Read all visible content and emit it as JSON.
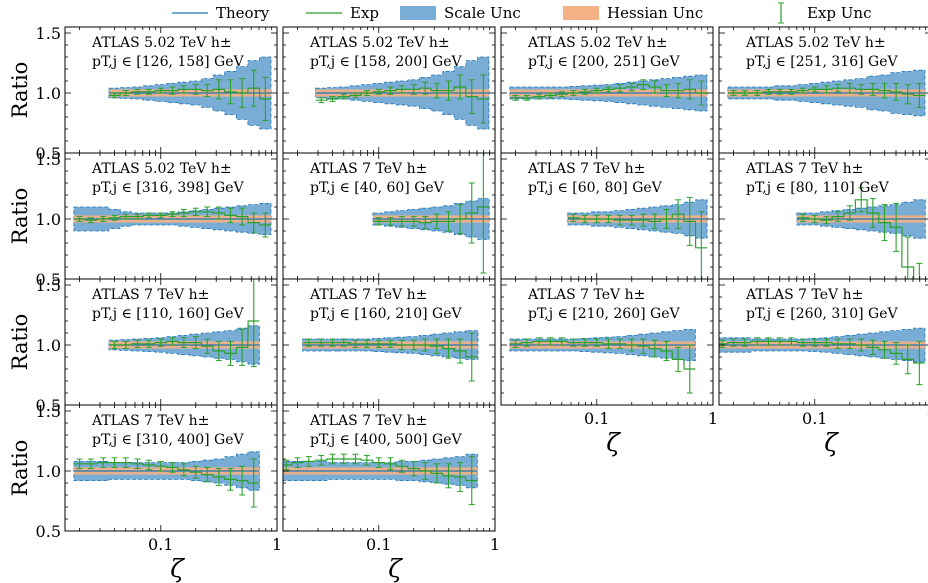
{
  "legend": {
    "items": [
      {
        "label": "Theory",
        "kind": "line",
        "color": "#1f77b4"
      },
      {
        "label": "Exp",
        "kind": "line",
        "color": "#2ca02c"
      },
      {
        "label": "Scale Unc",
        "kind": "patch",
        "color": "#7aadd6"
      },
      {
        "label": "Hessian Unc",
        "kind": "patch",
        "color": "#f4b183"
      },
      {
        "label": "Exp Unc",
        "kind": "errorbar",
        "color": "#2ca02c"
      }
    ]
  },
  "colors": {
    "theory": "#1f77b4",
    "exp": "#2ca02c",
    "scale_fill": "#7aadd6",
    "scale_edge": "#1f77b4",
    "hessian": "#f4b183"
  },
  "axes": {
    "ylabel": "Ratio",
    "xlabel": "ζ",
    "xscale": "log",
    "xlim": [
      0.015,
      1.0
    ],
    "ylim": [
      0.5,
      1.55
    ],
    "yticks": [
      {
        "v": 0.5,
        "label": "0.5"
      },
      {
        "v": 1.0,
        "label": "1.0"
      },
      {
        "v": 1.5,
        "label": "1.5"
      }
    ],
    "xticks": [
      {
        "v": 0.1,
        "label": "0.1"
      },
      {
        "v": 1.0,
        "label": "1"
      }
    ]
  },
  "chart_data": [
    {
      "type": "line",
      "title": "ATLAS 5.02 TeV h±",
      "subtitle": "pT,j ∈ [126, 158] GeV",
      "x": [
        0.04,
        0.05,
        0.063,
        0.079,
        0.1,
        0.126,
        0.158,
        0.2,
        0.251,
        0.316,
        0.398,
        0.501,
        0.631,
        0.794
      ],
      "theory": 1.0,
      "hessian_halfwidth": 0.03,
      "scale_unc": [
        0.04,
        0.045,
        0.05,
        0.06,
        0.07,
        0.08,
        0.09,
        0.1,
        0.12,
        0.15,
        0.18,
        0.22,
        0.27,
        0.3
      ],
      "exp": [
        0.98,
        1.0,
        1.01,
        1.01,
        1.02,
        1.02,
        1.03,
        1.03,
        1.02,
        1.03,
        1.01,
        1.0,
        1.04,
        0.95
      ],
      "exp_err": [
        0.02,
        0.02,
        0.02,
        0.02,
        0.02,
        0.03,
        0.03,
        0.04,
        0.05,
        0.08,
        0.1,
        0.12,
        0.15,
        0.18
      ]
    },
    {
      "type": "line",
      "title": "ATLAS 5.02 TeV h±",
      "subtitle": "pT,j ∈ [158, 200] GeV",
      "x": [
        0.032,
        0.04,
        0.05,
        0.063,
        0.079,
        0.1,
        0.126,
        0.158,
        0.2,
        0.251,
        0.316,
        0.398,
        0.501,
        0.631,
        0.794
      ],
      "theory": 1.0,
      "hessian_halfwidth": 0.03,
      "scale_unc": [
        0.04,
        0.045,
        0.05,
        0.06,
        0.07,
        0.08,
        0.09,
        0.1,
        0.11,
        0.13,
        0.15,
        0.18,
        0.22,
        0.27,
        0.3
      ],
      "exp": [
        0.94,
        0.95,
        0.97,
        0.98,
        1.0,
        1.01,
        1.02,
        1.03,
        1.03,
        1.04,
        1.02,
        1.02,
        1.05,
        0.97,
        0.95
      ],
      "exp_err": [
        0.02,
        0.02,
        0.02,
        0.02,
        0.02,
        0.02,
        0.03,
        0.03,
        0.04,
        0.05,
        0.06,
        0.08,
        0.1,
        0.14,
        0.2
      ]
    },
    {
      "type": "line",
      "title": "ATLAS 5.02 TeV h±",
      "subtitle": "pT,j ∈ [200, 251] GeV",
      "x": [
        0.02,
        0.025,
        0.032,
        0.04,
        0.05,
        0.063,
        0.079,
        0.1,
        0.126,
        0.158,
        0.2,
        0.251,
        0.316,
        0.398,
        0.501,
        0.631,
        0.794
      ],
      "theory": 1.0,
      "hessian_halfwidth": 0.03,
      "scale_unc": [
        0.05,
        0.05,
        0.05,
        0.05,
        0.05,
        0.055,
        0.06,
        0.065,
        0.07,
        0.08,
        0.09,
        0.1,
        0.11,
        0.12,
        0.13,
        0.14,
        0.15
      ],
      "exp": [
        0.96,
        0.96,
        0.97,
        0.98,
        0.99,
        1.0,
        1.01,
        1.02,
        1.03,
        1.04,
        1.05,
        1.07,
        1.05,
        1.02,
        1.02,
        1.03,
        1.0
      ],
      "exp_err": [
        0.02,
        0.02,
        0.02,
        0.02,
        0.02,
        0.02,
        0.02,
        0.02,
        0.02,
        0.03,
        0.03,
        0.04,
        0.05,
        0.05,
        0.06,
        0.08,
        0.1
      ]
    },
    {
      "type": "line",
      "title": "ATLAS 5.02 TeV h±",
      "subtitle": "pT,j ∈ [251, 316] GeV",
      "x": [
        0.02,
        0.025,
        0.032,
        0.04,
        0.05,
        0.063,
        0.079,
        0.1,
        0.126,
        0.158,
        0.2,
        0.251,
        0.316,
        0.398,
        0.501,
        0.631,
        0.794
      ],
      "theory": 1.0,
      "hessian_halfwidth": 0.03,
      "scale_unc": [
        0.05,
        0.05,
        0.05,
        0.05,
        0.06,
        0.06,
        0.07,
        0.08,
        0.09,
        0.1,
        0.11,
        0.12,
        0.14,
        0.15,
        0.17,
        0.18,
        0.19
      ],
      "exp": [
        1.0,
        1.0,
        1.0,
        1.01,
        1.01,
        1.01,
        1.02,
        1.03,
        1.03,
        1.04,
        1.04,
        1.03,
        1.03,
        1.02,
        1.01,
        0.99,
        0.98
      ],
      "exp_err": [
        0.02,
        0.02,
        0.02,
        0.02,
        0.02,
        0.02,
        0.02,
        0.02,
        0.03,
        0.03,
        0.04,
        0.04,
        0.05,
        0.06,
        0.07,
        0.08,
        0.1
      ]
    },
    {
      "type": "line",
      "title": "ATLAS 5.02 TeV h±",
      "subtitle": "pT,j ∈ [316, 398] GeV",
      "x": [
        0.02,
        0.025,
        0.032,
        0.04,
        0.05,
        0.063,
        0.079,
        0.1,
        0.126,
        0.158,
        0.2,
        0.251,
        0.316,
        0.398,
        0.501,
        0.631,
        0.794
      ],
      "theory": 1.0,
      "hessian_halfwidth": 0.03,
      "scale_unc": [
        0.1,
        0.1,
        0.1,
        0.08,
        0.06,
        0.05,
        0.05,
        0.05,
        0.05,
        0.06,
        0.07,
        0.08,
        0.09,
        0.1,
        0.11,
        0.12,
        0.13
      ],
      "exp": [
        1.0,
        0.99,
        1.0,
        1.01,
        1.02,
        1.02,
        1.03,
        1.03,
        1.04,
        1.05,
        1.06,
        1.06,
        1.05,
        1.03,
        1.02,
        0.97,
        0.95
      ],
      "exp_err": [
        0.02,
        0.02,
        0.02,
        0.02,
        0.02,
        0.02,
        0.02,
        0.02,
        0.02,
        0.03,
        0.03,
        0.04,
        0.05,
        0.06,
        0.07,
        0.08,
        0.1
      ]
    },
    {
      "type": "line",
      "title": "ATLAS 7 TeV h±",
      "subtitle": "pT,j ∈ [40, 60] GeV",
      "x": [
        0.1,
        0.126,
        0.158,
        0.2,
        0.251,
        0.316,
        0.398,
        0.501,
        0.631,
        0.794
      ],
      "theory": 1.0,
      "hessian_halfwidth": 0.03,
      "scale_unc": [
        0.05,
        0.06,
        0.07,
        0.08,
        0.09,
        0.1,
        0.11,
        0.13,
        0.15,
        0.17
      ],
      "exp": [
        0.98,
        0.98,
        0.98,
        0.98,
        0.97,
        0.98,
        0.98,
        1.0,
        1.05,
        1.1
      ],
      "exp_err": [
        0.03,
        0.03,
        0.04,
        0.04,
        0.05,
        0.06,
        0.08,
        0.12,
        0.25,
        0.55
      ]
    },
    {
      "type": "line",
      "title": "ATLAS 7 TeV h±",
      "subtitle": "pT,j ∈ [60, 80] GeV",
      "x": [
        0.063,
        0.079,
        0.1,
        0.126,
        0.158,
        0.2,
        0.251,
        0.316,
        0.398,
        0.501,
        0.631,
        0.794
      ],
      "theory": 1.0,
      "hessian_halfwidth": 0.03,
      "scale_unc": [
        0.05,
        0.05,
        0.06,
        0.06,
        0.07,
        0.08,
        0.09,
        0.1,
        0.11,
        0.12,
        0.14,
        0.16
      ],
      "exp": [
        1.01,
        1.0,
        1.0,
        1.0,
        0.99,
        0.99,
        0.99,
        0.98,
        1.0,
        1.04,
        0.98,
        0.76
      ],
      "exp_err": [
        0.03,
        0.03,
        0.03,
        0.03,
        0.04,
        0.04,
        0.05,
        0.06,
        0.08,
        0.12,
        0.2,
        0.3
      ]
    },
    {
      "type": "line",
      "title": "ATLAS 7 TeV h±",
      "subtitle": "pT,j ∈ [80, 110] GeV",
      "x": [
        0.079,
        0.1,
        0.126,
        0.158,
        0.2,
        0.251,
        0.316,
        0.398,
        0.501,
        0.631,
        0.794
      ],
      "theory": 1.0,
      "hessian_halfwidth": 0.03,
      "scale_unc": [
        0.05,
        0.05,
        0.06,
        0.07,
        0.08,
        0.09,
        0.1,
        0.11,
        0.12,
        0.14,
        0.16
      ],
      "exp": [
        1.01,
        1.0,
        0.99,
        1.02,
        1.05,
        1.16,
        1.05,
        0.97,
        0.93,
        0.6,
        0.38
      ],
      "exp_err": [
        0.03,
        0.03,
        0.03,
        0.04,
        0.06,
        0.1,
        0.12,
        0.15,
        0.2,
        0.25,
        0.25
      ]
    },
    {
      "type": "line",
      "title": "ATLAS 7 TeV h±",
      "subtitle": "pT,j ∈ [110, 160] GeV",
      "x": [
        0.04,
        0.05,
        0.063,
        0.079,
        0.1,
        0.126,
        0.158,
        0.2,
        0.251,
        0.316,
        0.398,
        0.501,
        0.631
      ],
      "theory": 1.0,
      "hessian_halfwidth": 0.03,
      "scale_unc": [
        0.04,
        0.045,
        0.05,
        0.055,
        0.06,
        0.07,
        0.08,
        0.09,
        0.1,
        0.11,
        0.12,
        0.14,
        0.16
      ],
      "exp": [
        1.0,
        1.0,
        1.01,
        1.01,
        1.02,
        1.03,
        1.02,
        1.02,
        0.99,
        0.95,
        0.93,
        0.98,
        1.2
      ],
      "exp_err": [
        0.03,
        0.03,
        0.03,
        0.03,
        0.03,
        0.03,
        0.04,
        0.05,
        0.06,
        0.08,
        0.1,
        0.15,
        0.38
      ]
    },
    {
      "type": "line",
      "title": "ATLAS 7 TeV h±",
      "subtitle": "pT,j ∈ [160, 210] GeV",
      "x": [
        0.025,
        0.032,
        0.04,
        0.05,
        0.063,
        0.079,
        0.1,
        0.126,
        0.158,
        0.2,
        0.251,
        0.316,
        0.398,
        0.501,
        0.631
      ],
      "theory": 1.0,
      "hessian_halfwidth": 0.03,
      "scale_unc": [
        0.05,
        0.05,
        0.05,
        0.05,
        0.05,
        0.05,
        0.055,
        0.06,
        0.065,
        0.07,
        0.08,
        0.09,
        0.1,
        0.11,
        0.12
      ],
      "exp": [
        1.02,
        1.02,
        1.02,
        1.02,
        1.01,
        1.01,
        1.01,
        1.01,
        1.0,
        1.0,
        1.0,
        0.99,
        0.97,
        0.95,
        0.9
      ],
      "exp_err": [
        0.03,
        0.03,
        0.03,
        0.03,
        0.03,
        0.03,
        0.03,
        0.03,
        0.04,
        0.04,
        0.05,
        0.06,
        0.08,
        0.1,
        0.2
      ]
    },
    {
      "type": "line",
      "title": "ATLAS 7 TeV h±",
      "subtitle": "pT,j ∈ [210, 260] GeV",
      "x": [
        0.02,
        0.025,
        0.032,
        0.04,
        0.05,
        0.063,
        0.079,
        0.1,
        0.126,
        0.158,
        0.2,
        0.251,
        0.316,
        0.398,
        0.501,
        0.631
      ],
      "theory": 1.0,
      "hessian_halfwidth": 0.03,
      "scale_unc": [
        0.05,
        0.05,
        0.05,
        0.05,
        0.05,
        0.05,
        0.055,
        0.06,
        0.065,
        0.07,
        0.08,
        0.09,
        0.1,
        0.11,
        0.12,
        0.13
      ],
      "exp": [
        1.01,
        1.02,
        1.03,
        1.03,
        1.03,
        1.02,
        1.02,
        1.02,
        1.01,
        1.01,
        1.0,
        0.99,
        0.97,
        0.95,
        0.88,
        0.8
      ],
      "exp_err": [
        0.03,
        0.03,
        0.03,
        0.03,
        0.03,
        0.03,
        0.03,
        0.03,
        0.04,
        0.04,
        0.05,
        0.06,
        0.07,
        0.08,
        0.1,
        0.2
      ]
    },
    {
      "type": "line",
      "title": "ATLAS 7 TeV h±",
      "subtitle": "pT,j ∈ [260, 310] GeV",
      "x": [
        0.016,
        0.02,
        0.025,
        0.032,
        0.04,
        0.05,
        0.063,
        0.079,
        0.1,
        0.126,
        0.158,
        0.2,
        0.251,
        0.316,
        0.398,
        0.501,
        0.631,
        0.794
      ],
      "theory": 1.0,
      "hessian_halfwidth": 0.03,
      "scale_unc": [
        0.06,
        0.06,
        0.06,
        0.05,
        0.05,
        0.05,
        0.05,
        0.05,
        0.055,
        0.06,
        0.07,
        0.08,
        0.09,
        0.1,
        0.11,
        0.12,
        0.13,
        0.14
      ],
      "exp": [
        1.01,
        1.02,
        1.02,
        1.03,
        1.03,
        1.03,
        1.03,
        1.02,
        1.02,
        1.02,
        1.01,
        1.01,
        1.0,
        0.98,
        0.96,
        0.93,
        0.88,
        0.85
      ],
      "exp_err": [
        0.03,
        0.03,
        0.03,
        0.03,
        0.03,
        0.03,
        0.03,
        0.03,
        0.03,
        0.03,
        0.04,
        0.04,
        0.05,
        0.06,
        0.07,
        0.09,
        0.12,
        0.18
      ]
    },
    {
      "type": "line",
      "title": "ATLAS 7 TeV h±",
      "subtitle": "pT,j ∈ [310, 400] GeV",
      "x": [
        0.02,
        0.025,
        0.032,
        0.04,
        0.05,
        0.063,
        0.079,
        0.1,
        0.126,
        0.158,
        0.2,
        0.251,
        0.316,
        0.398,
        0.501,
        0.631
      ],
      "theory": 1.0,
      "hessian_halfwidth": 0.03,
      "scale_unc": [
        0.08,
        0.08,
        0.08,
        0.07,
        0.07,
        0.07,
        0.07,
        0.07,
        0.07,
        0.07,
        0.08,
        0.09,
        0.1,
        0.12,
        0.14,
        0.16
      ],
      "exp": [
        1.06,
        1.06,
        1.07,
        1.07,
        1.07,
        1.06,
        1.05,
        1.04,
        1.03,
        1.01,
        0.99,
        0.97,
        0.95,
        0.93,
        0.92,
        0.9
      ],
      "exp_err": [
        0.04,
        0.04,
        0.04,
        0.04,
        0.04,
        0.04,
        0.04,
        0.04,
        0.04,
        0.05,
        0.05,
        0.06,
        0.07,
        0.09,
        0.12,
        0.2
      ]
    },
    {
      "type": "line",
      "title": "ATLAS 7 TeV h±",
      "subtitle": "pT,j ∈ [400, 500] GeV",
      "x": [
        0.016,
        0.02,
        0.025,
        0.032,
        0.04,
        0.05,
        0.063,
        0.079,
        0.1,
        0.126,
        0.158,
        0.2,
        0.251,
        0.316,
        0.398,
        0.501,
        0.631
      ],
      "theory": 1.0,
      "hessian_halfwidth": 0.03,
      "scale_unc": [
        0.08,
        0.08,
        0.08,
        0.08,
        0.07,
        0.07,
        0.07,
        0.07,
        0.07,
        0.07,
        0.08,
        0.08,
        0.09,
        0.1,
        0.11,
        0.12,
        0.14
      ],
      "exp": [
        1.05,
        1.07,
        1.08,
        1.09,
        1.1,
        1.1,
        1.1,
        1.09,
        1.07,
        1.06,
        1.04,
        1.02,
        1.0,
        0.98,
        0.96,
        0.95,
        0.92
      ],
      "exp_err": [
        0.04,
        0.04,
        0.04,
        0.04,
        0.04,
        0.04,
        0.04,
        0.04,
        0.04,
        0.05,
        0.05,
        0.06,
        0.07,
        0.08,
        0.1,
        0.12,
        0.2
      ]
    }
  ]
}
